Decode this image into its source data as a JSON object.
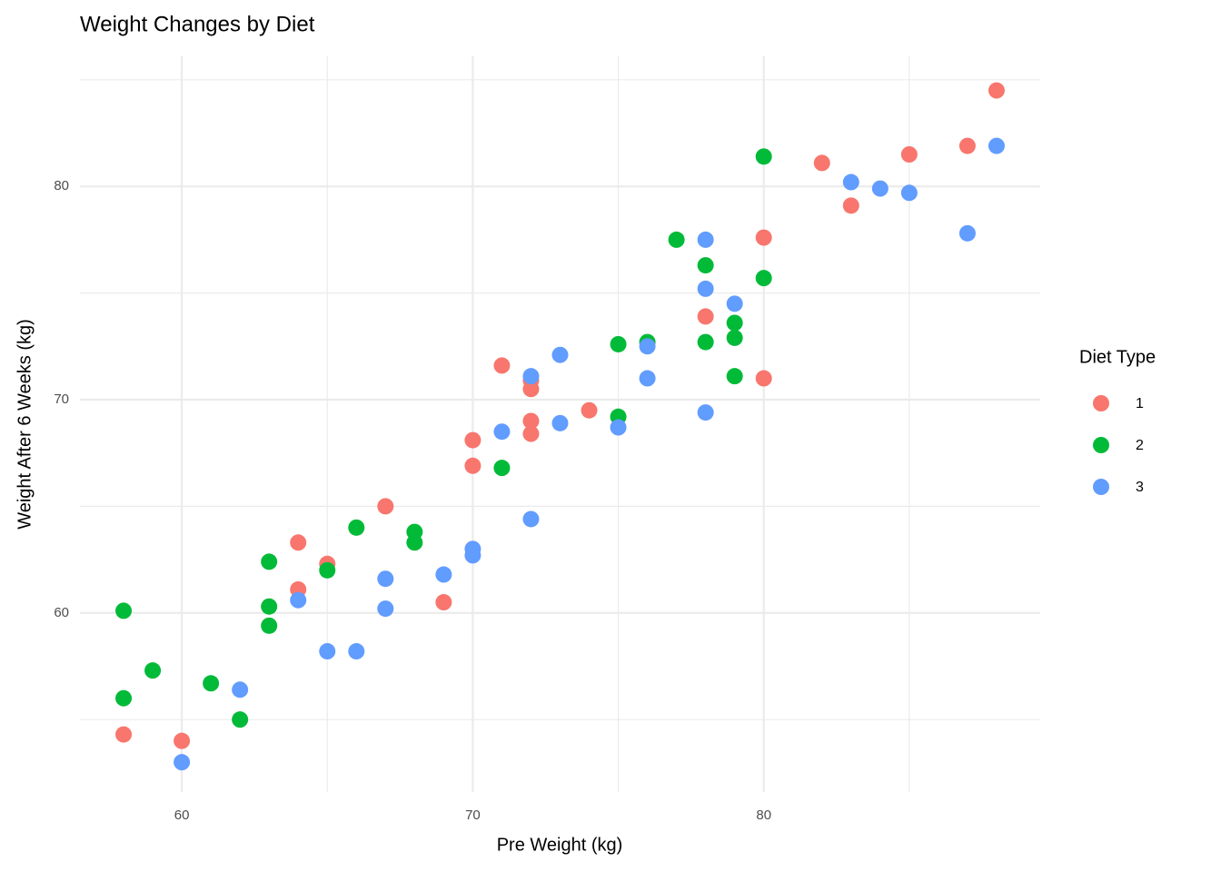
{
  "chart_data": {
    "type": "scatter",
    "title": "Weight Changes by Diet",
    "x_label": "Pre Weight (kg)",
    "y_label": "Weight After 6 Weeks (kg)",
    "legend_title": "Diet Type",
    "legend_position": "right",
    "grid": true,
    "xlim": [
      56.5,
      89.5
    ],
    "ylim": [
      51.6,
      86.1
    ],
    "xticks": [
      60,
      70,
      80
    ],
    "yticks": [
      60,
      70,
      80
    ],
    "x_minor_grid": [
      65,
      75,
      85
    ],
    "y_minor_grid": [
      55,
      65,
      75,
      85
    ],
    "series": [
      {
        "name": "1",
        "color": "#F8766D",
        "x": [
          58,
          60,
          64,
          64,
          65,
          67,
          69,
          70,
          70,
          71,
          72,
          72,
          72,
          72,
          74,
          78,
          80,
          80,
          82,
          83,
          85,
          87,
          88
        ],
        "values": [
          54.3,
          54.0,
          63.3,
          61.1,
          62.3,
          65.0,
          60.5,
          68.1,
          66.9,
          71.6,
          70.9,
          70.5,
          69.0,
          68.4,
          69.5,
          73.9,
          77.6,
          71.0,
          81.1,
          79.1,
          81.5,
          81.9,
          84.5
        ]
      },
      {
        "name": "2",
        "color": "#00BA38",
        "x": [
          58,
          58,
          59,
          61,
          62,
          63,
          63,
          63,
          65,
          66,
          68,
          68,
          71,
          75,
          75,
          76,
          77,
          78,
          78,
          79,
          79,
          79,
          80,
          80
        ],
        "values": [
          60.1,
          56.0,
          57.3,
          56.7,
          55.0,
          62.4,
          60.3,
          59.4,
          62.0,
          64.0,
          63.8,
          63.3,
          66.8,
          72.6,
          69.2,
          72.7,
          77.5,
          76.3,
          72.7,
          73.6,
          72.9,
          71.1,
          81.4,
          75.7
        ]
      },
      {
        "name": "3",
        "color": "#619CFF",
        "x": [
          60,
          62,
          64,
          65,
          66,
          67,
          67,
          69,
          70,
          70,
          71,
          72,
          72,
          73,
          73,
          75,
          76,
          76,
          78,
          78,
          78,
          79,
          83,
          84,
          85,
          87,
          88
        ],
        "values": [
          53.0,
          56.4,
          60.6,
          58.2,
          58.2,
          61.6,
          60.2,
          61.8,
          63.0,
          62.7,
          68.5,
          71.1,
          64.4,
          72.1,
          68.9,
          68.7,
          72.5,
          71.0,
          77.5,
          75.2,
          69.4,
          74.5,
          80.2,
          79.9,
          79.7,
          77.8,
          81.9
        ]
      }
    ]
  }
}
